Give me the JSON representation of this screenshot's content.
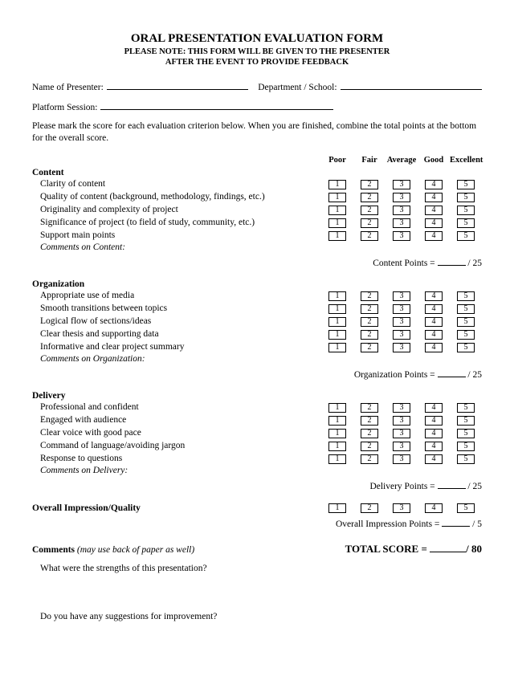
{
  "title": "ORAL PRESENTATION EVALUATION FORM",
  "subtitle_line1": "PLEASE NOTE: THIS FORM WILL BE GIVEN TO THE PRESENTER",
  "subtitle_line2": "AFTER THE EVENT TO PROVIDE FEEDBACK",
  "fields": {
    "name_label": "Name of Presenter:",
    "dept_label": "Department / School:",
    "platform_label": "Platform Session:"
  },
  "instructions": "Please mark the score for each evaluation criterion below. When you are finished, combine the total points at the bottom for the overall score.",
  "rating_headers": [
    "Poor",
    "Fair",
    "Average",
    "Good",
    "Excellent"
  ],
  "rating_values": [
    "1",
    "2",
    "3",
    "4",
    "5"
  ],
  "sections": {
    "content": {
      "title": "Content",
      "criteria": [
        "Clarity of content",
        "Quality of content (background, methodology, findings, etc.)",
        "Originality and complexity of project",
        "Significance of project (to field of study, community, etc.)",
        "Support main points"
      ],
      "comments_label": "Comments on Content:",
      "points_label": "Content Points =",
      "points_max": "/ 25"
    },
    "organization": {
      "title": "Organization",
      "criteria": [
        "Appropriate use of media",
        "Smooth transitions between topics",
        "Logical flow of sections/ideas",
        "Clear thesis and supporting data",
        "Informative and clear project summary"
      ],
      "comments_label": "Comments on Organization:",
      "points_label": "Organization Points =",
      "points_max": "/ 25"
    },
    "delivery": {
      "title": "Delivery",
      "criteria": [
        "Professional and confident",
        "Engaged with audience",
        "Clear voice with good pace",
        "Command of language/avoiding jargon",
        "Response to questions"
      ],
      "comments_label": "Comments on Delivery:",
      "points_label": "Delivery Points =",
      "points_max": "/ 25"
    }
  },
  "overall": {
    "label": "Overall Impression/Quality",
    "points_label": "Overall Impression Points =",
    "points_max": "/ 5"
  },
  "comments_header": "Comments",
  "comments_note": " (may use back of paper as well)",
  "total_label": "TOTAL SCORE =",
  "total_max": "/ 80",
  "q1": "What were the strengths of this presentation?",
  "q2": "Do you have any suggestions for improvement?"
}
